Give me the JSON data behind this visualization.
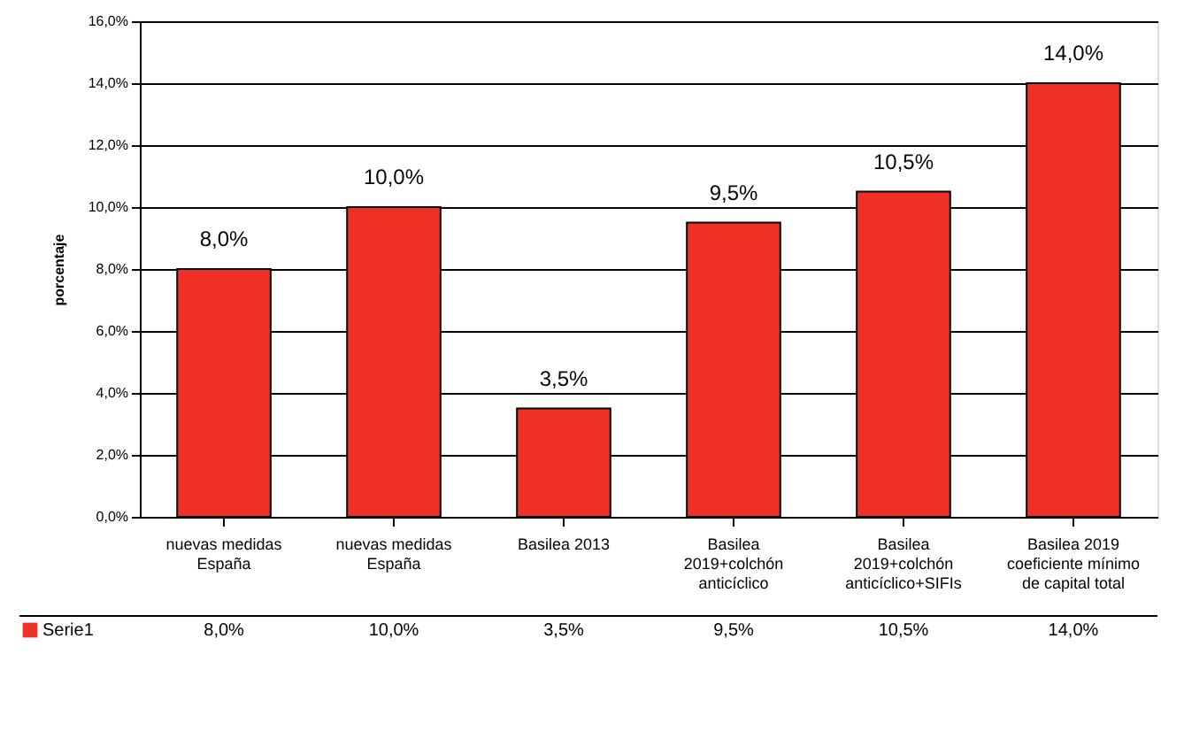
{
  "chart_data": {
    "type": "bar",
    "ylabel": "porcentaje",
    "categories": [
      "nuevas medidas España",
      "nuevas medidas España",
      "Basilea 2013",
      "Basilea 2019+colchón anticíclico",
      "Basilea 2019+colchón anticíclico+SIFIs",
      "Basilea 2019 coeficiente mínimo de capital total"
    ],
    "series": [
      {
        "name": "Serie1",
        "color": "#ee3124",
        "values": [
          8.0,
          10.0,
          3.5,
          9.5,
          10.5,
          14.0
        ],
        "value_labels": [
          "8,0%",
          "10,0%",
          "3,5%",
          "9,5%",
          "10,5%",
          "14,0%"
        ]
      }
    ],
    "ylim": [
      0,
      16
    ],
    "yticks": [
      {
        "value": 0,
        "label": "0,0%"
      },
      {
        "value": 2,
        "label": "2,0%"
      },
      {
        "value": 4,
        "label": "4,0%"
      },
      {
        "value": 6,
        "label": "6,0%"
      },
      {
        "value": 8,
        "label": "8,0%"
      },
      {
        "value": 10,
        "label": "10,0%"
      },
      {
        "value": 12,
        "label": "12,0%"
      },
      {
        "value": 14,
        "label": "14,0%"
      },
      {
        "value": 16,
        "label": "16,0%"
      }
    ],
    "grid": "y",
    "legend": "bottom"
  }
}
